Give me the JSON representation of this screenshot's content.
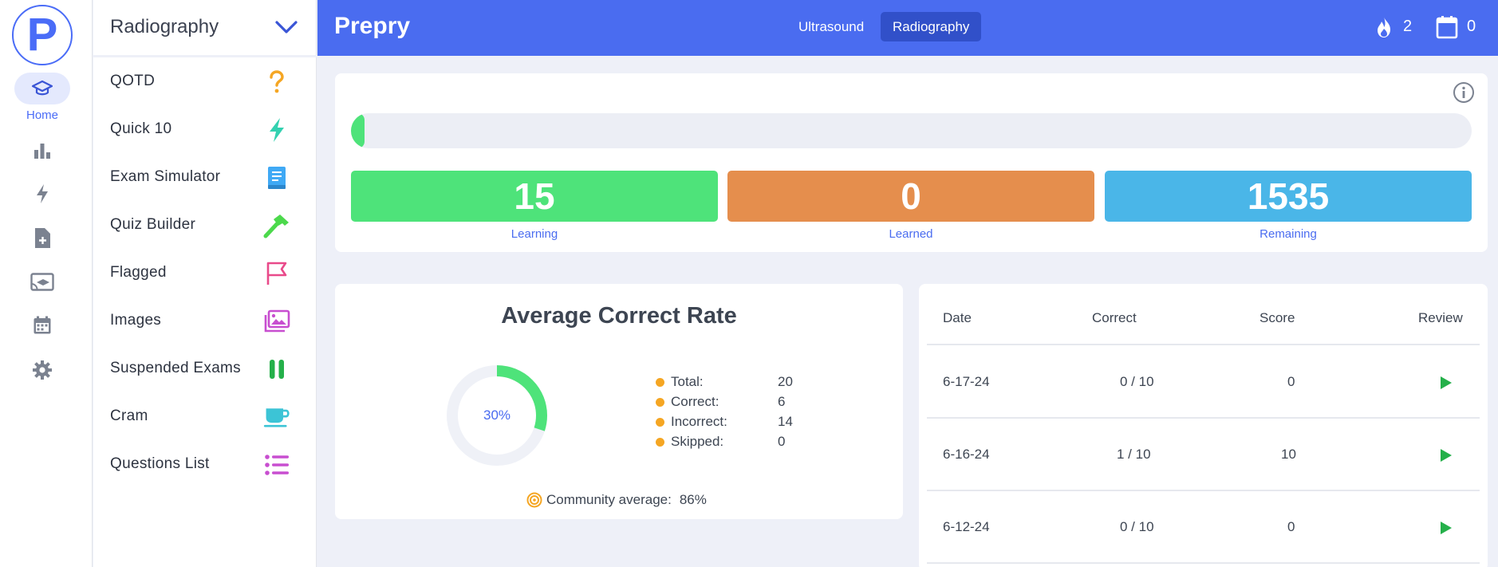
{
  "rail": {
    "logo_letter": "P",
    "home_label": "Home",
    "icons": [
      "graduation-cap-icon",
      "bar-chart-icon",
      "bolt-icon",
      "file-plus-icon",
      "cast-education-icon",
      "calendar-icon",
      "gear-icon"
    ]
  },
  "sidebar": {
    "title": "Radiography",
    "items": [
      {
        "label": "QOTD",
        "icon": "question-icon",
        "color": "#f5a623"
      },
      {
        "label": "Quick 10",
        "icon": "bolt-icon",
        "color": "#33d1b0"
      },
      {
        "label": "Exam Simulator",
        "icon": "book-icon",
        "color": "#3fa9f5"
      },
      {
        "label": "Quiz Builder",
        "icon": "hammer-icon",
        "color": "#4cd94c"
      },
      {
        "label": "Flagged",
        "icon": "flag-icon",
        "color": "#e94a8a"
      },
      {
        "label": "Images",
        "icon": "images-icon",
        "color": "#c84ed0"
      },
      {
        "label": "Suspended Exams",
        "icon": "pause-icon",
        "color": "#25b04a"
      },
      {
        "label": "Cram",
        "icon": "coffee-cup-icon",
        "color": "#3cc4d6"
      },
      {
        "label": "Questions List",
        "icon": "list-icon",
        "color": "#c84ed0"
      }
    ]
  },
  "topbar": {
    "brand": "Prepry",
    "tabs": [
      {
        "label": "Ultrasound",
        "active": false
      },
      {
        "label": "Radiography",
        "active": true
      }
    ],
    "streak": "2",
    "calendar_count": "0"
  },
  "progress": {
    "fill_fraction": 0.0098,
    "stats": [
      {
        "value": "15",
        "label": "Learning",
        "color": "#4ee37a"
      },
      {
        "value": "0",
        "label": "Learned",
        "color": "#e58e4d"
      },
      {
        "value": "1535",
        "label": "Remaining",
        "color": "#4ab6e8"
      }
    ]
  },
  "average": {
    "title": "Average Correct Rate",
    "percent_text": "30%",
    "percent": 30,
    "legend": [
      {
        "label": "Total:",
        "value": "20"
      },
      {
        "label": "Correct:",
        "value": "6"
      },
      {
        "label": "Incorrect:",
        "value": "14"
      },
      {
        "label": "Skipped:",
        "value": "0"
      }
    ],
    "community_label": "Community average:",
    "community_value": "86%"
  },
  "history": {
    "headers": {
      "date": "Date",
      "correct": "Correct",
      "score": "Score",
      "review": "Review"
    },
    "rows": [
      {
        "date": "6-17-24",
        "correct": "0 / 10",
        "score": "0"
      },
      {
        "date": "6-16-24",
        "correct": "1 / 10",
        "score": "10"
      },
      {
        "date": "6-12-24",
        "correct": "0 / 10",
        "score": "0"
      }
    ]
  }
}
